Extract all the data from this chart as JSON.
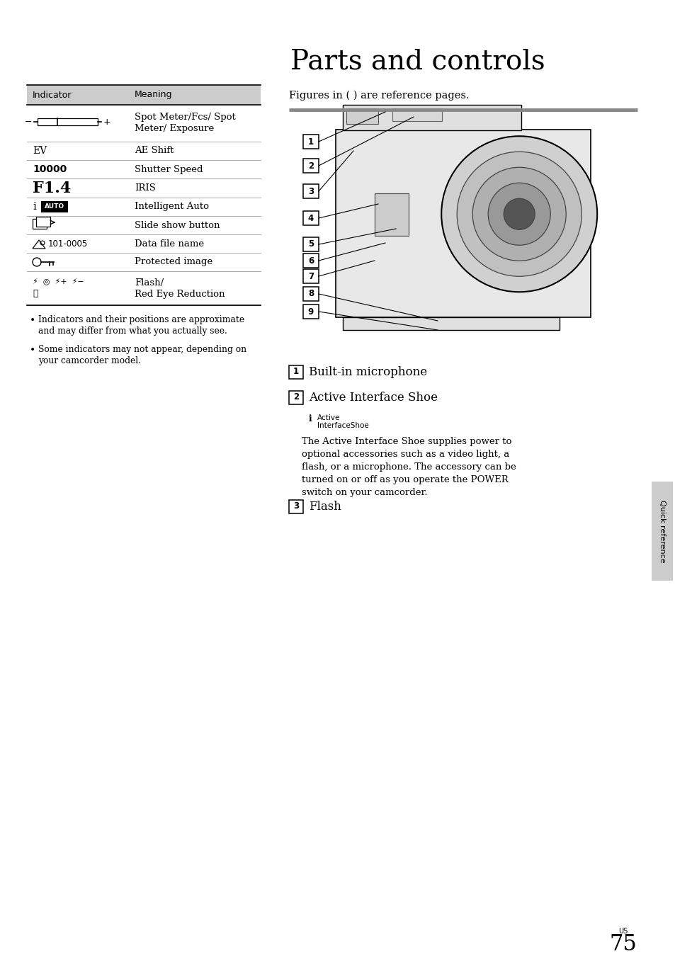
{
  "title": "Parts and controls",
  "background_color": "#ffffff",
  "page_number": "75",
  "page_label": "US",
  "sidebar_label": "Quick reference",
  "figures_text": "Figures in ( ) are reference pages.",
  "active_shoe_desc_lines": [
    "The Active Interface Shoe supplies power to",
    "optional accessories such as a video light, a",
    "flash, or a microphone. The accessory can be",
    "turned on or off as you operate the POWER",
    "switch on your camcorder."
  ],
  "row_meanings": [
    "Spot Meter/Fcs/ Spot\nMeter/ Exposure",
    "AE Shift",
    "Shutter Speed",
    "IRIS",
    "Intelligent Auto",
    "Slide show button",
    "Data file name",
    "Protected image",
    "Flash/\nRed Eye Reduction"
  ],
  "bullet1_line1": "Indicators and their positions are approximate",
  "bullet1_line2": "and may differ from what you actually see.",
  "bullet2_line1": "Some indicators may not appear, depending on",
  "bullet2_line2": "your camcorder model."
}
